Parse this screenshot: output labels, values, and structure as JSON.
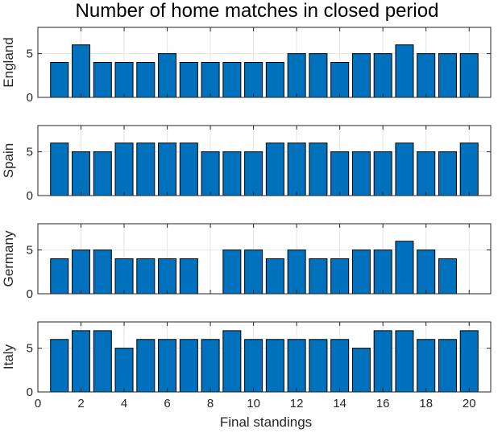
{
  "chart_data": {
    "type": "bar",
    "title": "Number of home matches in closed period",
    "xlabel": "Final standings",
    "xlim": [
      0,
      21
    ],
    "xticks": [
      0,
      2,
      4,
      6,
      8,
      10,
      12,
      14,
      16,
      18,
      20
    ],
    "grid": true,
    "bar_color": "#0072BD",
    "x": [
      1,
      2,
      3,
      4,
      5,
      6,
      7,
      8,
      9,
      10,
      11,
      12,
      13,
      14,
      15,
      16,
      17,
      18,
      19,
      20
    ],
    "subplots": [
      {
        "ylabel": "England",
        "ylim": [
          0,
          8
        ],
        "yticks": [
          0,
          5
        ],
        "values": [
          4,
          6,
          4,
          4,
          4,
          5,
          4,
          4,
          4,
          4,
          4,
          5,
          5,
          4,
          5,
          5,
          6,
          5,
          5,
          5
        ]
      },
      {
        "ylabel": "Spain",
        "ylim": [
          0,
          8
        ],
        "yticks": [
          0,
          5
        ],
        "values": [
          6,
          5,
          5,
          6,
          6,
          6,
          6,
          5,
          5,
          5,
          6,
          6,
          6,
          5,
          5,
          5,
          6,
          5,
          5,
          6
        ]
      },
      {
        "ylabel": "Germany",
        "ylim": [
          0,
          8
        ],
        "yticks": [
          0,
          5
        ],
        "values": [
          4,
          5,
          5,
          4,
          4,
          4,
          4,
          5,
          5,
          4,
          5,
          4,
          4,
          5,
          5,
          6,
          5,
          4
        ],
        "x": [
          1,
          2,
          3,
          4,
          5,
          6,
          7,
          9,
          10,
          11,
          12,
          13,
          14,
          15,
          16,
          17,
          18,
          19
        ]
      },
      {
        "ylabel": "Italy",
        "ylim": [
          0,
          8
        ],
        "yticks": [
          0,
          5
        ],
        "values": [
          6,
          7,
          7,
          5,
          6,
          6,
          6,
          6,
          7,
          6,
          6,
          6,
          6,
          6,
          5,
          7,
          7,
          6,
          6,
          7
        ]
      }
    ]
  }
}
